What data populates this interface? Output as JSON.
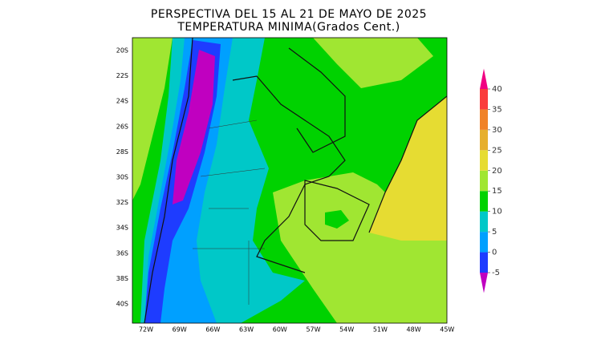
{
  "title": [
    "PERSPECTIVA DEL 15 AL 21 DE MAYO DE 2025",
    "TEMPERATURA MINIMA(Grados Cent.)"
  ],
  "lat_labels": [
    "20S",
    "22S",
    "24S",
    "26S",
    "28S",
    "30S",
    "32S",
    "34S",
    "36S",
    "38S",
    "40S"
  ],
  "lon_labels": [
    "72W",
    "69W",
    "66W",
    "63W",
    "60W",
    "57W",
    "54W",
    "51W",
    "48W",
    "45W"
  ],
  "colorbar": {
    "ticks": [
      -5,
      0,
      5,
      10,
      15,
      20,
      25,
      30,
      35,
      40
    ],
    "colors": [
      "#c000c0",
      "#1e3cff",
      "#00a0ff",
      "#00c8c8",
      "#00d200",
      "#a0e632",
      "#e6dc32",
      "#e6af2d",
      "#f08228",
      "#fa3c3c",
      "#f00082"
    ]
  }
}
